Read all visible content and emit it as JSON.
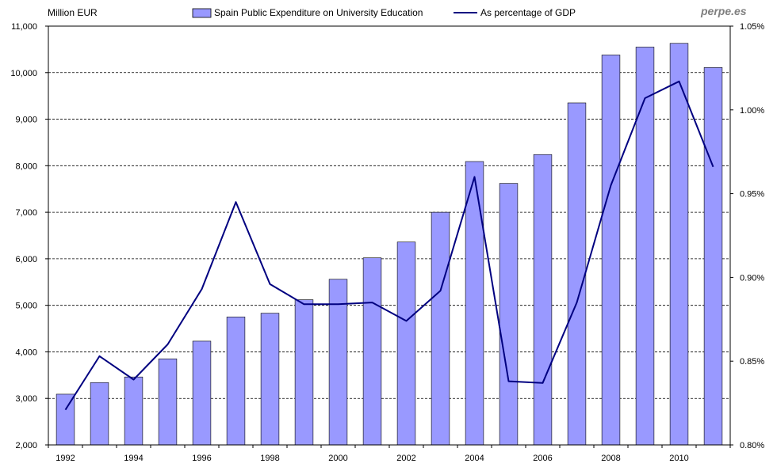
{
  "brand": "perpe.es",
  "chart_data": {
    "type": "bar",
    "y_left_label": "Million EUR",
    "y_left_lim": [
      2000,
      11000
    ],
    "y_left_ticks": [
      "2,000",
      "3,000",
      "4,000",
      "5,000",
      "6,000",
      "7,000",
      "8,000",
      "9,000",
      "10,000",
      "11,000"
    ],
    "y_right_lim": [
      0.8,
      1.05
    ],
    "y_right_ticks": [
      "0.80%",
      "0.85%",
      "0.90%",
      "0.95%",
      "1.00%",
      "1.05%"
    ],
    "x_tick_labels": [
      "1992",
      "1994",
      "1996",
      "1998",
      "2000",
      "2002",
      "2004",
      "2006",
      "2008",
      "2010"
    ],
    "years": [
      1992,
      1993,
      1994,
      1995,
      1996,
      1997,
      1998,
      1999,
      2000,
      2001,
      2002,
      2003,
      2004,
      2005,
      2006,
      2007,
      2008,
      2009,
      2010,
      2011
    ],
    "grid": "horizontal dashed",
    "legend_position": "top",
    "series": [
      {
        "name": "Spain Public Expenditure on University Education",
        "type": "bar",
        "axis": "left",
        "color": "#9999ff",
        "values": [
          3090,
          3340,
          3460,
          3850,
          4230,
          4750,
          4830,
          5120,
          5560,
          6020,
          6360,
          7000,
          8090,
          7620,
          8240,
          9350,
          10380,
          10550,
          10630,
          10110
        ]
      },
      {
        "name": "As percentage of GDP",
        "type": "line",
        "axis": "right",
        "color": "#000080",
        "values": [
          0.821,
          0.853,
          0.839,
          0.86,
          0.893,
          0.945,
          0.896,
          0.884,
          0.884,
          0.885,
          0.874,
          0.892,
          0.96,
          0.838,
          0.837,
          0.885,
          0.955,
          1.007,
          1.017,
          0.966
        ]
      }
    ]
  }
}
